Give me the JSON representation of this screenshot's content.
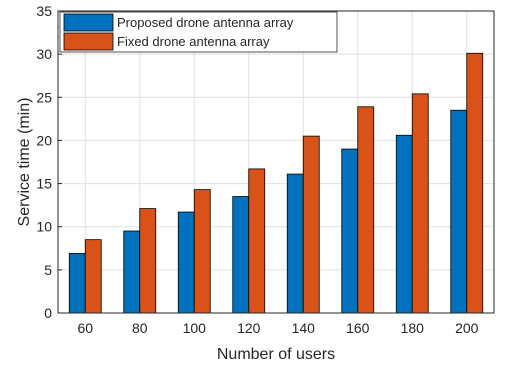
{
  "chart_data": {
    "type": "bar",
    "title": "",
    "xlabel": "Number of users",
    "ylabel": "Service time (min)",
    "categories": [
      "60",
      "80",
      "100",
      "120",
      "140",
      "160",
      "180",
      "200"
    ],
    "ylim": [
      0,
      35
    ],
    "yticks": [
      0,
      5,
      10,
      15,
      20,
      25,
      30,
      35
    ],
    "grid": true,
    "legend_position": "top-left",
    "series": [
      {
        "name": "Proposed drone antenna array",
        "color": "#0072BD",
        "values": [
          6.9,
          9.5,
          11.7,
          13.5,
          16.1,
          19.0,
          20.6,
          23.5
        ]
      },
      {
        "name": "Fixed drone antenna array",
        "color": "#D95319",
        "values": [
          8.5,
          12.1,
          14.3,
          16.7,
          20.5,
          23.9,
          25.4,
          30.1
        ]
      }
    ]
  }
}
